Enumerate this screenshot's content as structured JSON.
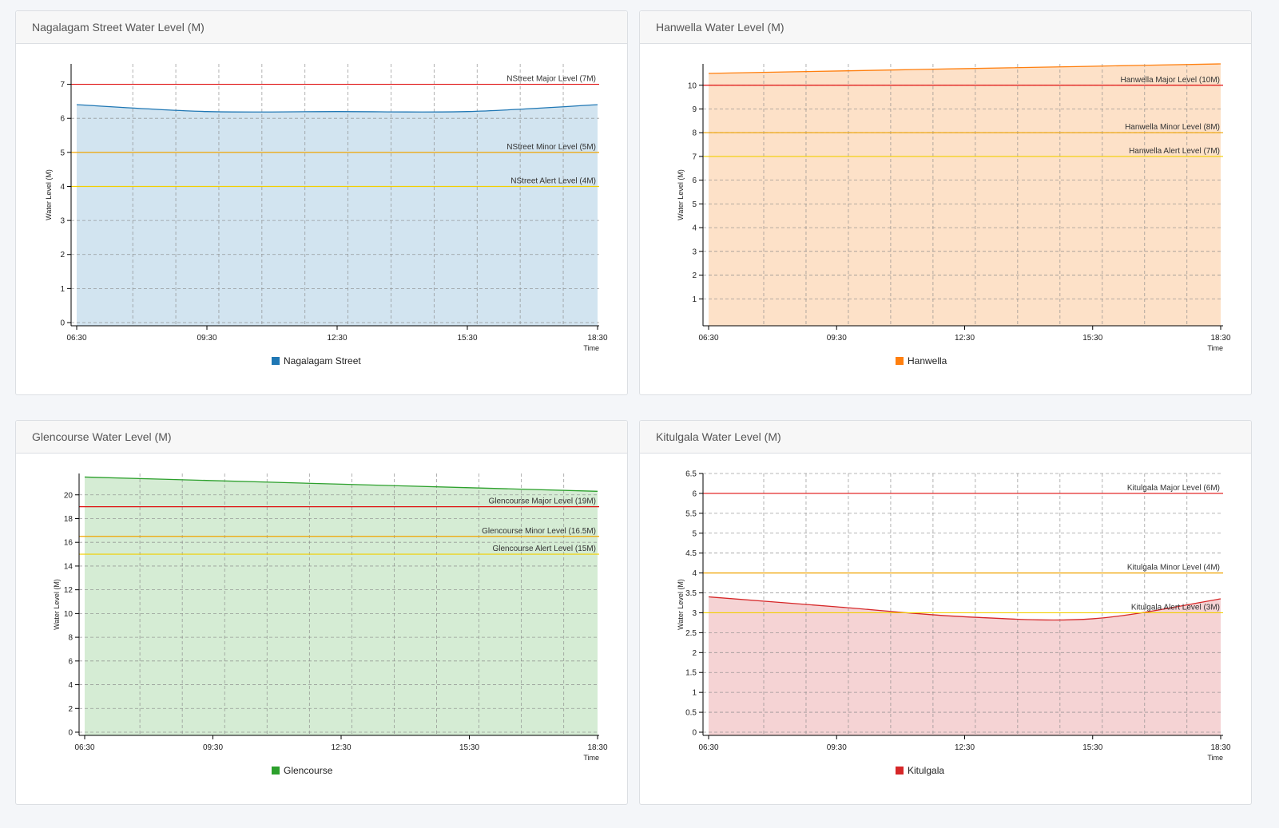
{
  "chart_data": [
    {
      "type": "area",
      "title": "Nagalagam Street Water Level (M)",
      "xlabel": "Time",
      "ylabel": "Water Level (M)",
      "ylim": [
        0,
        7.6
      ],
      "yticks": [
        0,
        1,
        2,
        3,
        4,
        5,
        6,
        7
      ],
      "x_hours": [
        6.5,
        9.5,
        12.5,
        15.5,
        18.5
      ],
      "x_tick_labels": [
        "06:30",
        "09:30",
        "12:30",
        "15:30",
        "18:30"
      ],
      "grid": true,
      "legend_position": "bottom",
      "series": [
        {
          "name": "Nagalagam Street",
          "color": "#1f77b4",
          "fill": "#d2e4f0",
          "values": [
            6.4,
            6.2,
            6.2,
            6.2,
            6.4
          ]
        }
      ],
      "thresholds": [
        {
          "label": "NStreet Major Level (7M)",
          "value": 7,
          "color": "#e01010"
        },
        {
          "label": "NStreet Minor Level (5M)",
          "value": 5,
          "color": "#f0a400"
        },
        {
          "label": "NStreet Alert Level (4M)",
          "value": 4,
          "color": "#f2cf00"
        }
      ]
    },
    {
      "type": "area",
      "title": "Hanwella Water Level (M)",
      "xlabel": "Time",
      "ylabel": "Water Level (M)",
      "ylim": [
        0,
        10.9
      ],
      "yticks": [
        1,
        2,
        3,
        4,
        5,
        6,
        7,
        8,
        9,
        10
      ],
      "x_hours": [
        6.5,
        9.5,
        12.5,
        15.5,
        18.5
      ],
      "x_tick_labels": [
        "06:30",
        "09:30",
        "12:30",
        "15:30",
        "18:30"
      ],
      "grid": true,
      "legend_position": "bottom",
      "series": [
        {
          "name": "Hanwella",
          "color": "#ff7f0e",
          "fill": "#fde1c8",
          "values": [
            10.5,
            10.6,
            10.7,
            10.8,
            10.9
          ]
        }
      ],
      "thresholds": [
        {
          "label": "Hanwella Major Level (10M)",
          "value": 10,
          "color": "#e01010"
        },
        {
          "label": "Hanwella Minor Level (8M)",
          "value": 8,
          "color": "#f0a400"
        },
        {
          "label": "Hanwella Alert Level (7M)",
          "value": 7,
          "color": "#f2cf00"
        }
      ]
    },
    {
      "type": "area",
      "title": "Glencourse Water Level (M)",
      "xlabel": "Time",
      "ylabel": "Water Level (M)",
      "ylim": [
        0,
        21.8
      ],
      "yticks": [
        0,
        2,
        4,
        6,
        8,
        10,
        12,
        14,
        16,
        18,
        20
      ],
      "x_hours": [
        6.5,
        9.5,
        12.5,
        15.5,
        18.5
      ],
      "x_tick_labels": [
        "06:30",
        "09:30",
        "12:30",
        "15:30",
        "18:30"
      ],
      "grid": true,
      "legend_position": "bottom",
      "series": [
        {
          "name": "Glencourse",
          "color": "#2ca02c",
          "fill": "#d5ecd4",
          "values": [
            21.5,
            21.2,
            20.9,
            20.6,
            20.3
          ]
        }
      ],
      "thresholds": [
        {
          "label": "Glencourse Major Level (19M)",
          "value": 19,
          "color": "#e01010"
        },
        {
          "label": "Glencourse Minor Level (16.5M)",
          "value": 16.5,
          "color": "#f0a400"
        },
        {
          "label": "Glencourse Alert Level (15M)",
          "value": 15,
          "color": "#f2cf00"
        }
      ]
    },
    {
      "type": "area",
      "title": "Kitulgala Water Level (M)",
      "xlabel": "Time",
      "ylabel": "Water Level (M)",
      "ylim": [
        0,
        6.5
      ],
      "yticks": [
        0,
        0.5,
        1,
        1.5,
        2,
        2.5,
        3,
        3.5,
        4,
        4.5,
        5,
        5.5,
        6,
        6.5
      ],
      "x_hours": [
        6.5,
        9.5,
        12.5,
        15.5,
        18.5
      ],
      "x_tick_labels": [
        "06:30",
        "09:30",
        "12:30",
        "15:30",
        "18:30"
      ],
      "grid": true,
      "legend_position": "bottom",
      "series": [
        {
          "name": "Kitulgala",
          "color": "#d62728",
          "fill": "#f5d3d4",
          "values": [
            3.4,
            3.15,
            2.9,
            2.85,
            3.35
          ]
        }
      ],
      "thresholds": [
        {
          "label": "Kitulgala Major Level (6M)",
          "value": 6,
          "color": "#e01010"
        },
        {
          "label": "Kitulgala Minor Level (4M)",
          "value": 4,
          "color": "#f0a400"
        },
        {
          "label": "Kitulgala Alert Level (3M)",
          "value": 3,
          "color": "#f2cf00"
        }
      ]
    }
  ]
}
